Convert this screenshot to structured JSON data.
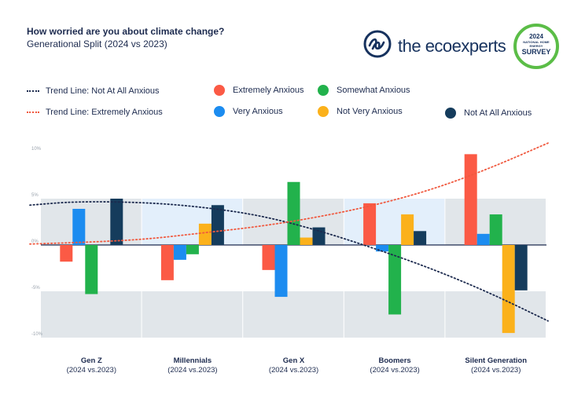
{
  "header": {
    "title": "How worried are you about climate change?",
    "subtitle": "Generational Split (2024 vs 2023)"
  },
  "brand": {
    "logo_text": "the ecoexperts",
    "logo_icon": "ee-monogram-icon",
    "badge_year": "2024",
    "badge_line1": "NATIONAL HOME ENERGY",
    "badge_line2": "SURVEY"
  },
  "colors": {
    "extremely": "#fb5a45",
    "very": "#1c8cf0",
    "somewhat": "#22b24c",
    "not_very": "#fbb11b",
    "not_at_all": "#153c5c",
    "trend_not_at_all": "#1d2b4f",
    "trend_extremely": "#f0593f",
    "band_light": "#e1e6ea",
    "band_blue": "#e3effb"
  },
  "legend": {
    "trend_not_at_all": "Trend Line: Not At All Anxious",
    "trend_extremely": "Trend Line: Extremely Anxious",
    "extremely": "Extremely Anxious",
    "very": "Very Anxious",
    "somewhat": "Somewhat Anxious",
    "not_very": "Not Very Anxious",
    "not_at_all": "Not At All Anxious"
  },
  "chart_data": {
    "type": "bar",
    "title": "How worried are you about climate change?",
    "subtitle": "Generational Split (2024 vs 2023)",
    "categories": [
      "Gen Z",
      "Millennials",
      "Gen X",
      "Boomers",
      "Silent Generation"
    ],
    "category_sublabel": "(2024 vs.2023)",
    "ylim": [
      -10,
      10
    ],
    "yticks": [
      10,
      5,
      0,
      -5,
      -10
    ],
    "ytick_labels": [
      "10%",
      "5%",
      "0%",
      "-5%",
      "-10%"
    ],
    "grid": false,
    "legend_position": "top",
    "series": [
      {
        "name": "Extremely Anxious",
        "values": [
          -1.8,
          -3.8,
          -2.7,
          4.5,
          9.8
        ]
      },
      {
        "name": "Very Anxious",
        "values": [
          3.9,
          -1.6,
          -5.6,
          -0.7,
          1.2
        ]
      },
      {
        "name": "Somewhat Anxious",
        "values": [
          -5.3,
          -1.0,
          6.8,
          -7.5,
          3.3
        ]
      },
      {
        "name": "Not Very Anxious",
        "values": [
          0.0,
          2.3,
          0.8,
          3.3,
          -9.5
        ]
      },
      {
        "name": "Not At All Anxious",
        "values": [
          5.0,
          4.3,
          1.9,
          1.5,
          -4.9
        ]
      }
    ],
    "trend_lines": [
      {
        "name": "Trend Line: Not At All Anxious",
        "style": "dotted",
        "points": [
          [
            0,
            4.3
          ],
          [
            0.4,
            4.7
          ],
          [
            1.0,
            4.6
          ],
          [
            1.5,
            4.1
          ],
          [
            2.0,
            3.2
          ],
          [
            2.5,
            1.6
          ],
          [
            3.0,
            -0.4
          ],
          [
            3.5,
            -2.6
          ],
          [
            4.0,
            -5.2
          ],
          [
            4.5,
            -8.2
          ]
        ]
      },
      {
        "name": "Trend Line: Extremely Anxious",
        "style": "dotted",
        "points": [
          [
            0,
            0.1
          ],
          [
            0.5,
            0.3
          ],
          [
            1.0,
            0.6
          ],
          [
            1.5,
            1.3
          ],
          [
            2.0,
            2.0
          ],
          [
            2.5,
            3.0
          ],
          [
            3.0,
            4.3
          ],
          [
            3.5,
            6.0
          ],
          [
            4.0,
            8.3
          ],
          [
            4.5,
            11.0
          ]
        ]
      }
    ]
  }
}
